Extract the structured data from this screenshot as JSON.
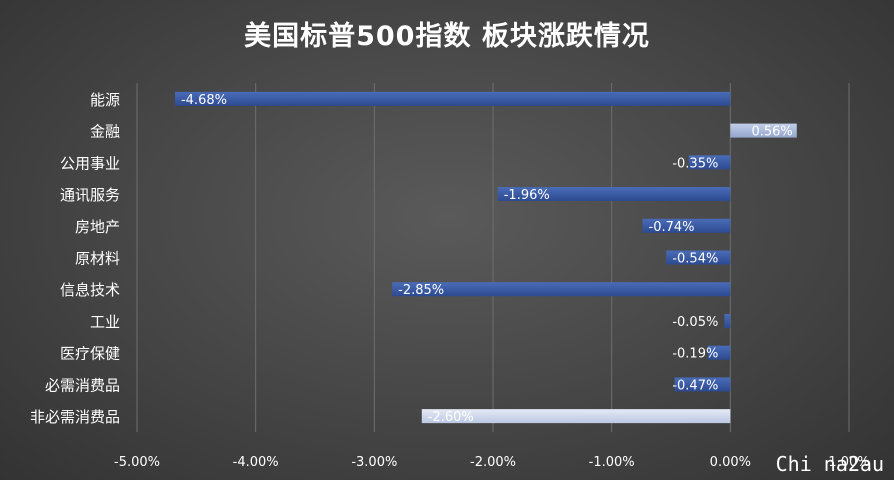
{
  "colors": {
    "negative_bar": "#3b5ba5",
    "positive_bar": "#aab8d8",
    "consumer_staples_bar": "#d0d8ec",
    "grid": "#6e6e6e",
    "text": "#ffffff"
  },
  "watermark": "Chi na2au",
  "chart_data": {
    "type": "bar",
    "orientation": "horizontal",
    "title": "美国标普500指数 板块涨跌情况",
    "categories": [
      "能源",
      "金融",
      "公用事业",
      "通讯服务",
      "房地产",
      "原材料",
      "信息技术",
      "工业",
      "医疗保健",
      "必需消费品",
      "非必需消费品"
    ],
    "values": [
      -4.68,
      0.56,
      -0.35,
      -1.96,
      -0.74,
      -0.54,
      -2.85,
      -0.05,
      -0.19,
      -0.47,
      -2.6
    ],
    "data_labels": [
      "-4.68%",
      "0.56%",
      "-0.35%",
      "-1.96%",
      "-0.74%",
      "-0.54%",
      "-2.85%",
      "-0.05%",
      "-0.19%",
      "-0.47%",
      "-2.60%"
    ],
    "xlim": [
      -5,
      1
    ],
    "xticks": [
      -5,
      -4,
      -3,
      -2,
      -1,
      0,
      1
    ],
    "xtick_labels": [
      "-5.00%",
      "-4.00%",
      "-3.00%",
      "-2.00%",
      "-1.00%",
      "0.00%",
      "1.00%"
    ],
    "unit": "%",
    "grid": true,
    "legend": "none"
  }
}
